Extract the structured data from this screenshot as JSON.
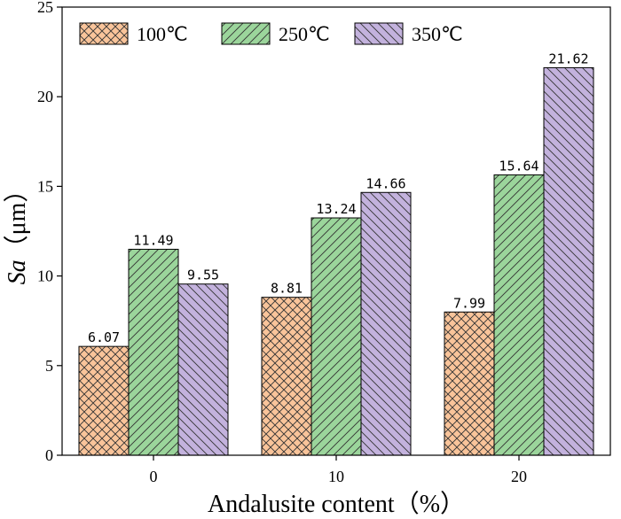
{
  "chart_data": {
    "type": "bar",
    "categories": [
      "0",
      "10",
      "20"
    ],
    "series": [
      {
        "name": "100℃",
        "values": [
          6.07,
          8.81,
          7.99
        ],
        "color": "#f9c49a",
        "pattern": "crosshatch"
      },
      {
        "name": "250℃",
        "values": [
          11.49,
          13.24,
          15.64
        ],
        "color": "#9bd59b",
        "pattern": "forward-diagonal"
      },
      {
        "name": "350℃",
        "values": [
          9.55,
          14.66,
          21.62
        ],
        "color": "#c3b2dd",
        "pattern": "backward-diagonal"
      }
    ],
    "data_labels": [
      [
        "6.07",
        "8.81",
        "7.99"
      ],
      [
        "11.49",
        "13.24",
        "15.64"
      ],
      [
        "9.55",
        "14.66",
        "21.62"
      ]
    ],
    "title": "",
    "xlabel": "Andalusite content（%）",
    "ylabel_italic": "Sa",
    "ylabel_unit": "（μm）",
    "ylim": [
      0,
      25
    ],
    "yticks": [
      "0",
      "5",
      "10",
      "15",
      "20",
      "25"
    ],
    "grid": false,
    "legend_position": "top-left"
  }
}
